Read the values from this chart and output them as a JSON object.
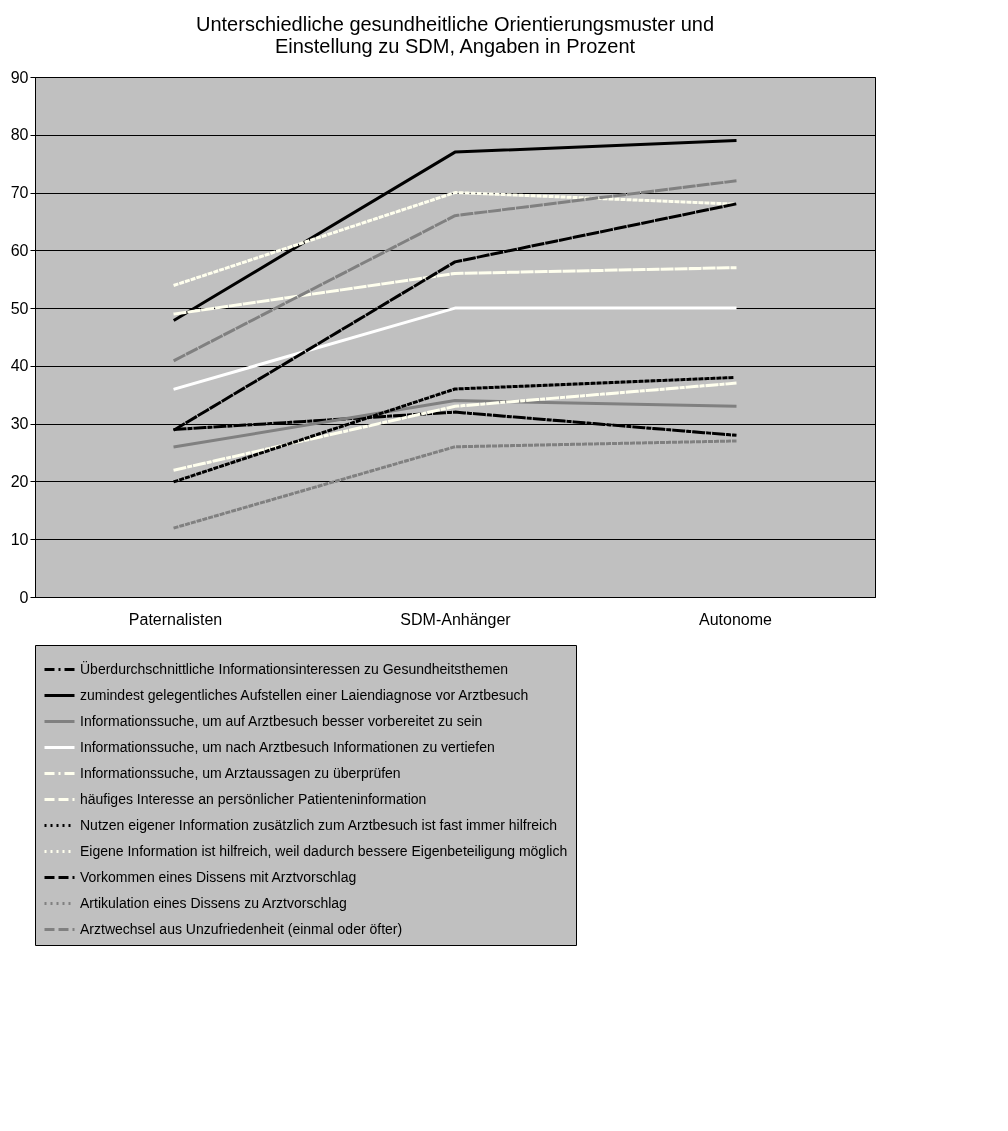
{
  "chart_data": {
    "type": "line",
    "title": "Unterschiedliche gesundheitliche Orientierungsmuster und\nEinstellung zu SDM, Angaben in Prozent",
    "categories": [
      "Paternalisten",
      "SDM-Anhänger",
      "Autonome"
    ],
    "ylim": [
      0,
      90
    ],
    "yticks": [
      0,
      10,
      20,
      30,
      40,
      50,
      60,
      70,
      80,
      90
    ],
    "grid": "y",
    "legend": "bottom",
    "marker": "none",
    "series": [
      {
        "name": "Überdurchschnittliche Informationsinteressen zu Gesundheitsthemen",
        "color": "#000000",
        "line_style": "dashdot",
        "values": [
          29,
          32,
          28
        ]
      },
      {
        "name": "zumindest gelegentliches Aufstellen einer Laiendiagnose vor Arztbesuch",
        "color": "#000000",
        "line_style": "solid",
        "values": [
          48,
          77,
          79
        ]
      },
      {
        "name": "Informationssuche, um auf Arztbesuch besser vorbereitet zu sein",
        "color": "#808080",
        "line_style": "solid",
        "values": [
          26,
          34,
          33
        ]
      },
      {
        "name": "Informationssuche, um nach Arztbesuch Informationen zu vertiefen",
        "color": "#ffffff",
        "line_style": "solid",
        "values": [
          36,
          50,
          50
        ]
      },
      {
        "name": "Informationssuche, um Arztaussagen zu überprüfen",
        "color": "#ffffee",
        "line_style": "dashdot",
        "values": [
          22,
          33,
          37
        ]
      },
      {
        "name": "häufiges Interesse an persönlicher Patienteninformation",
        "color": "#ffffee",
        "line_style": "dashed",
        "values": [
          49,
          56,
          57
        ]
      },
      {
        "name": "Nutzen eigener Information zusätzlich zum Arztbesuch ist fast immer hilfreich",
        "color": "#000000",
        "line_style": "dotted",
        "values": [
          20,
          36,
          38
        ]
      },
      {
        "name": "Eigene Information ist hilfreich, weil dadurch bessere Eigenbeteiligung möglich",
        "color": "#ffffee",
        "line_style": "dotted",
        "values": [
          54,
          70,
          68
        ]
      },
      {
        "name": "Vorkommen eines Dissens mit Arztvorschlag",
        "color": "#000000",
        "line_style": "dashed",
        "values": [
          29,
          58,
          68
        ]
      },
      {
        "name": "Artikulation eines Dissens zu Arztvorschlag",
        "color": "#808080",
        "line_style": "dotted",
        "values": [
          12,
          26,
          27
        ]
      },
      {
        "name": "Arztwechsel aus Unzufriedenheit (einmal oder öfter)",
        "color": "#808080",
        "line_style": "dashed",
        "values": [
          41,
          66,
          72
        ]
      }
    ]
  }
}
